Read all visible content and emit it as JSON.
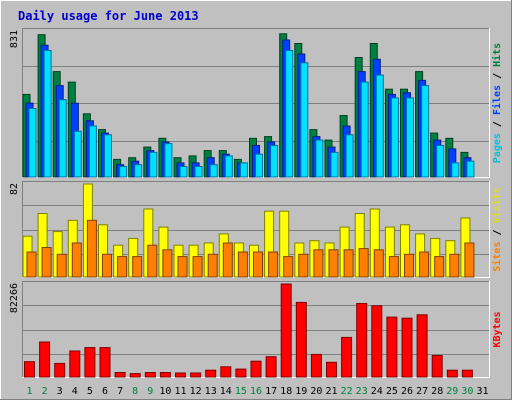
{
  "chart_data": [
    {
      "type": "bar",
      "title": "Daily usage for June 2013",
      "panel": "pages-files-hits",
      "ymax_label": "831",
      "legend": [
        "Pages",
        "Files",
        "Hits"
      ],
      "categories": [
        "1",
        "2",
        "3",
        "4",
        "5",
        "6",
        "7",
        "8",
        "9",
        "10",
        "11",
        "12",
        "13",
        "14",
        "15",
        "16",
        "17",
        "18",
        "19",
        "20",
        "21",
        "22",
        "23",
        "24",
        "25",
        "26",
        "27",
        "28",
        "29",
        "30",
        "31"
      ],
      "ylim": [
        0,
        831
      ],
      "series": [
        {
          "name": "Hits",
          "values": [
            470,
            810,
            600,
            540,
            360,
            270,
            100,
            110,
            170,
            220,
            110,
            120,
            150,
            150,
            100,
            220,
            230,
            815,
            760,
            270,
            210,
            350,
            680,
            760,
            500,
            500,
            600,
            250,
            220,
            140,
            0
          ]
        },
        {
          "name": "Files",
          "values": [
            420,
            750,
            520,
            420,
            320,
            250,
            70,
            90,
            150,
            200,
            80,
            80,
            110,
            130,
            80,
            180,
            200,
            780,
            700,
            230,
            170,
            290,
            600,
            670,
            470,
            480,
            550,
            210,
            160,
            110,
            0
          ]
        },
        {
          "name": "Pages",
          "values": [
            390,
            720,
            440,
            260,
            290,
            240,
            60,
            70,
            140,
            190,
            60,
            60,
            70,
            120,
            80,
            130,
            180,
            720,
            650,
            210,
            140,
            240,
            540,
            580,
            450,
            450,
            520,
            180,
            80,
            90,
            0
          ]
        }
      ]
    },
    {
      "type": "bar",
      "panel": "sites-visits",
      "ymax_label": "82",
      "legend": [
        "Sites",
        "Visits"
      ],
      "categories": [
        "1",
        "2",
        "3",
        "4",
        "5",
        "6",
        "7",
        "8",
        "9",
        "10",
        "11",
        "12",
        "13",
        "14",
        "15",
        "16",
        "17",
        "18",
        "19",
        "20",
        "21",
        "22",
        "23",
        "24",
        "25",
        "26",
        "27",
        "28",
        "29",
        "30",
        "31"
      ],
      "ylim": [
        0,
        82
      ],
      "series": [
        {
          "name": "Visits",
          "values": [
            36,
            56,
            40,
            50,
            82,
            46,
            28,
            34,
            60,
            44,
            28,
            28,
            30,
            38,
            30,
            28,
            58,
            58,
            30,
            32,
            30,
            44,
            56,
            60,
            44,
            46,
            38,
            34,
            32,
            52,
            0
          ]
        },
        {
          "name": "Sites",
          "values": [
            22,
            26,
            20,
            30,
            50,
            20,
            18,
            18,
            28,
            24,
            18,
            18,
            20,
            30,
            22,
            22,
            22,
            18,
            20,
            24,
            24,
            24,
            25,
            24,
            18,
            20,
            22,
            18,
            20,
            30,
            0
          ]
        }
      ]
    },
    {
      "type": "bar",
      "panel": "kbytes",
      "ymax_label": "82266",
      "legend": [
        "KBytes"
      ],
      "categories": [
        "1",
        "2",
        "3",
        "4",
        "5",
        "6",
        "7",
        "8",
        "9",
        "10",
        "11",
        "12",
        "13",
        "14",
        "15",
        "16",
        "17",
        "18",
        "19",
        "20",
        "21",
        "22",
        "23",
        "24",
        "25",
        "26",
        "27",
        "28",
        "29",
        "30",
        "31"
      ],
      "weekend_days": [
        "1",
        "2",
        "8",
        "9",
        "15",
        "16",
        "22",
        "23",
        "29",
        "30"
      ],
      "ylim": [
        0,
        82266
      ],
      "series": [
        {
          "name": "KBytes",
          "values": [
            13500,
            31000,
            12000,
            23000,
            26000,
            26000,
            4000,
            3000,
            4000,
            4000,
            3500,
            3500,
            6000,
            9000,
            7000,
            14000,
            18000,
            82266,
            66000,
            20000,
            13000,
            35000,
            65000,
            63000,
            53000,
            52000,
            55000,
            19000,
            6000,
            6000,
            0
          ]
        }
      ]
    }
  ]
}
